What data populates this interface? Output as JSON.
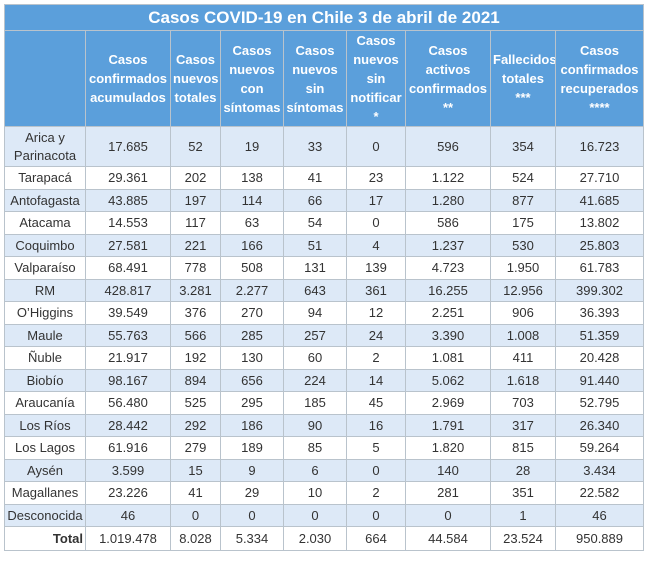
{
  "table": {
    "title": "Casos COVID-19 en Chile 3 de abril de 2021",
    "header": [
      "",
      "Casos confirmados acumulados",
      "Casos nuevos totales",
      "Casos nuevos con síntomas",
      "Casos nuevos sin síntomas",
      "Casos nuevos sin notificar *",
      "Casos activos confirmados **",
      "Fallecidos totales ***",
      "Casos confirmados recuperados ****"
    ],
    "rows": [
      [
        "Arica y Parinacota",
        "17.685",
        "52",
        "19",
        "33",
        "0",
        "596",
        "354",
        "16.723"
      ],
      [
        "Tarapacá",
        "29.361",
        "202",
        "138",
        "41",
        "23",
        "1.122",
        "524",
        "27.710"
      ],
      [
        "Antofagasta",
        "43.885",
        "197",
        "114",
        "66",
        "17",
        "1.280",
        "877",
        "41.685"
      ],
      [
        "Atacama",
        "14.553",
        "117",
        "63",
        "54",
        "0",
        "586",
        "175",
        "13.802"
      ],
      [
        "Coquimbo",
        "27.581",
        "221",
        "166",
        "51",
        "4",
        "1.237",
        "530",
        "25.803"
      ],
      [
        "Valparaíso",
        "68.491",
        "778",
        "508",
        "131",
        "139",
        "4.723",
        "1.950",
        "61.783"
      ],
      [
        "RM",
        "428.817",
        "3.281",
        "2.277",
        "643",
        "361",
        "16.255",
        "12.956",
        "399.302"
      ],
      [
        "O’Higgins",
        "39.549",
        "376",
        "270",
        "94",
        "12",
        "2.251",
        "906",
        "36.393"
      ],
      [
        "Maule",
        "55.763",
        "566",
        "285",
        "257",
        "24",
        "3.390",
        "1.008",
        "51.359"
      ],
      [
        "Ñuble",
        "21.917",
        "192",
        "130",
        "60",
        "2",
        "1.081",
        "411",
        "20.428"
      ],
      [
        "Biobío",
        "98.167",
        "894",
        "656",
        "224",
        "14",
        "5.062",
        "1.618",
        "91.440"
      ],
      [
        "Araucanía",
        "56.480",
        "525",
        "295",
        "185",
        "45",
        "2.969",
        "703",
        "52.795"
      ],
      [
        "Los Ríos",
        "28.442",
        "292",
        "186",
        "90",
        "16",
        "1.791",
        "317",
        "26.340"
      ],
      [
        "Los Lagos",
        "61.916",
        "279",
        "189",
        "85",
        "5",
        "1.820",
        "815",
        "59.264"
      ],
      [
        "Aysén",
        "3.599",
        "15",
        "9",
        "6",
        "0",
        "140",
        "28",
        "3.434"
      ],
      [
        "Magallanes",
        "23.226",
        "41",
        "29",
        "10",
        "2",
        "281",
        "351",
        "22.582"
      ],
      [
        "Desconocida",
        "46",
        "0",
        "0",
        "0",
        "0",
        "0",
        "1",
        "46"
      ],
      [
        "Total",
        "1.019.478",
        "8.028",
        "5.334",
        "2.030",
        "664",
        "44.584",
        "23.524",
        "950.889"
      ]
    ]
  }
}
